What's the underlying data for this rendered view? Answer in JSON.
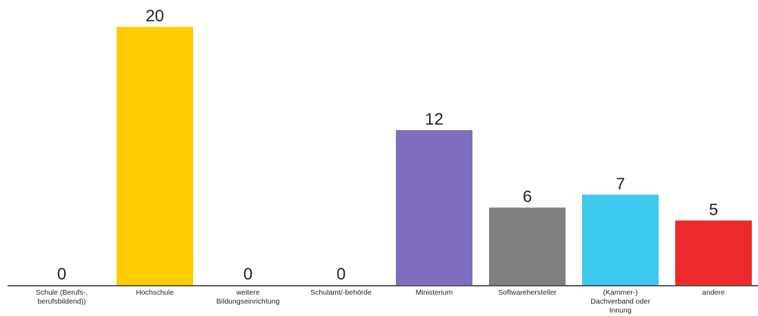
{
  "chart_data": {
    "type": "bar",
    "title": "",
    "xlabel": "",
    "ylabel": "",
    "ylim": [
      0,
      20
    ],
    "grid": false,
    "legend": "none",
    "categories": [
      [
        "Schule (Berufs-,",
        "berufsbildend))"
      ],
      [
        "Hochschule"
      ],
      [
        "weitere",
        "Bildungseinrichtung"
      ],
      [
        "Schulamt/-behörde"
      ],
      [
        "Ministerium"
      ],
      [
        "Softwarehersteller"
      ],
      [
        "(Kammer-)",
        "Dachverband oder",
        "Innung"
      ],
      [
        "andere"
      ]
    ],
    "values": [
      0,
      20,
      0,
      0,
      12,
      6,
      7,
      5
    ],
    "colors": [
      "#ffcc00",
      "#ffcc00",
      "#ffcc00",
      "#ffcc00",
      "#7f6dbf",
      "#808080",
      "#3dc8f0",
      "#ee2a2a"
    ],
    "axis_color": "#555555"
  }
}
